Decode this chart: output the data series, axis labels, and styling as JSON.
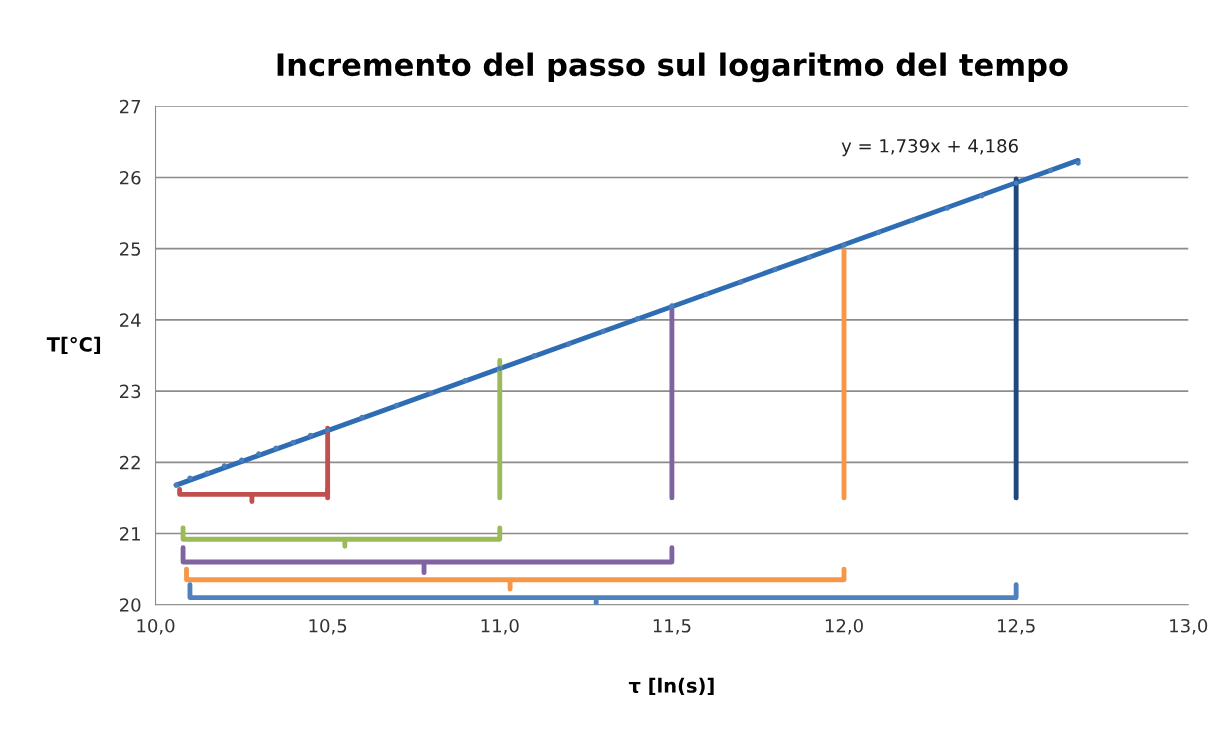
{
  "chart_data": {
    "type": "scatter",
    "title": "Incremento del passo sul logaritmo del tempo",
    "xlabel": "τ [ln(s)]",
    "ylabel": "T[°C]",
    "xlim": [
      10.0,
      13.0
    ],
    "xticks": [
      {
        "value": 10.0,
        "label": "10,0"
      },
      {
        "value": 10.5,
        "label": "10,5"
      },
      {
        "value": 11.0,
        "label": "11,0"
      },
      {
        "value": 11.5,
        "label": "11,5"
      },
      {
        "value": 12.0,
        "label": "12,0"
      },
      {
        "value": 12.5,
        "label": "12,5"
      },
      {
        "value": 13.0,
        "label": "13,0"
      }
    ],
    "ylim": [
      20,
      27
    ],
    "yticks": [
      20,
      21,
      22,
      23,
      24,
      25,
      26,
      27
    ],
    "grid": "y",
    "legend": false,
    "annotations": [
      "y = 1,739x + 4,186"
    ],
    "series": [
      {
        "marker": "circle",
        "color": "#4a7ebb",
        "x": [
          10.06,
          10.1,
          10.15,
          10.2,
          10.25,
          10.3,
          10.35,
          10.4,
          10.45,
          10.5,
          10.6,
          10.7,
          10.8,
          10.9,
          11.0,
          11.1,
          11.2,
          11.3,
          11.4,
          11.5,
          11.6,
          11.7,
          11.8,
          11.9,
          12.0,
          12.1,
          12.2,
          12.3,
          12.4,
          12.5,
          12.6,
          12.68
        ],
        "values": [
          21.68,
          21.78,
          21.85,
          21.95,
          22.03,
          22.12,
          22.2,
          22.28,
          22.38,
          22.45,
          22.63,
          22.8,
          22.97,
          23.15,
          23.32,
          23.5,
          23.66,
          23.84,
          24.02,
          24.19,
          24.36,
          24.53,
          24.71,
          24.88,
          25.05,
          25.23,
          25.4,
          25.57,
          25.74,
          25.92,
          26.1,
          26.2
        ]
      },
      {
        "type": "line",
        "marker": "none",
        "line_style": "solid",
        "color": "#2e6db4",
        "x": [
          10.06,
          12.68
        ],
        "values": [
          21.68,
          26.24
        ]
      },
      {
        "type": "line",
        "marker": "none",
        "line_style": "solid",
        "color": "#c0504d",
        "x": [
          10.5,
          10.5
        ],
        "values": [
          21.5,
          22.48
        ]
      },
      {
        "type": "line",
        "marker": "none",
        "line_style": "solid",
        "color": "#9bbb59",
        "x": [
          11.0,
          11.0
        ],
        "values": [
          21.5,
          23.43
        ]
      },
      {
        "type": "line",
        "marker": "none",
        "line_style": "solid",
        "color": "#8064a2",
        "x": [
          11.5,
          11.5
        ],
        "values": [
          21.5,
          24.2
        ]
      },
      {
        "type": "line",
        "marker": "none",
        "line_style": "solid",
        "color": "#f79646",
        "x": [
          12.0,
          12.0
        ],
        "values": [
          21.5,
          24.97
        ]
      },
      {
        "type": "line",
        "marker": "none",
        "line_style": "solid",
        "color": "#1f497d",
        "x": [
          12.5,
          12.5
        ],
        "values": [
          21.5,
          25.98
        ]
      },
      {
        "type": "line",
        "marker": "none",
        "line_style": "solid",
        "color": "#c0504d",
        "x": [
          10.07,
          10.07,
          10.28,
          10.28,
          10.28,
          10.5,
          10.5
        ],
        "values": [
          21.62,
          21.55,
          21.55,
          21.45,
          21.55,
          21.55,
          21.62
        ]
      },
      {
        "type": "line",
        "marker": "none",
        "line_style": "solid",
        "color": "#9bbb59",
        "x": [
          10.08,
          10.08,
          10.55,
          10.55,
          10.55,
          11.0,
          11.0
        ],
        "values": [
          21.08,
          20.92,
          20.92,
          20.82,
          20.92,
          20.92,
          21.08
        ]
      },
      {
        "type": "line",
        "marker": "none",
        "line_style": "solid",
        "color": "#8064a2",
        "x": [
          10.08,
          10.08,
          10.78,
          10.78,
          10.78,
          11.5,
          11.5
        ],
        "values": [
          20.8,
          20.6,
          20.6,
          20.45,
          20.6,
          20.6,
          20.8
        ]
      },
      {
        "type": "line",
        "marker": "none",
        "line_style": "solid",
        "color": "#f79646",
        "x": [
          10.09,
          10.09,
          11.03,
          11.03,
          11.03,
          12.0,
          12.0
        ],
        "values": [
          20.5,
          20.35,
          20.35,
          20.22,
          20.35,
          20.35,
          20.5
        ]
      },
      {
        "type": "line",
        "marker": "none",
        "line_style": "solid",
        "color": "#4f81bd",
        "x": [
          10.1,
          10.1,
          11.28,
          11.28,
          11.28,
          12.5,
          12.5
        ],
        "values": [
          20.28,
          20.1,
          20.1,
          20.0,
          20.1,
          20.1,
          20.28
        ]
      }
    ]
  }
}
